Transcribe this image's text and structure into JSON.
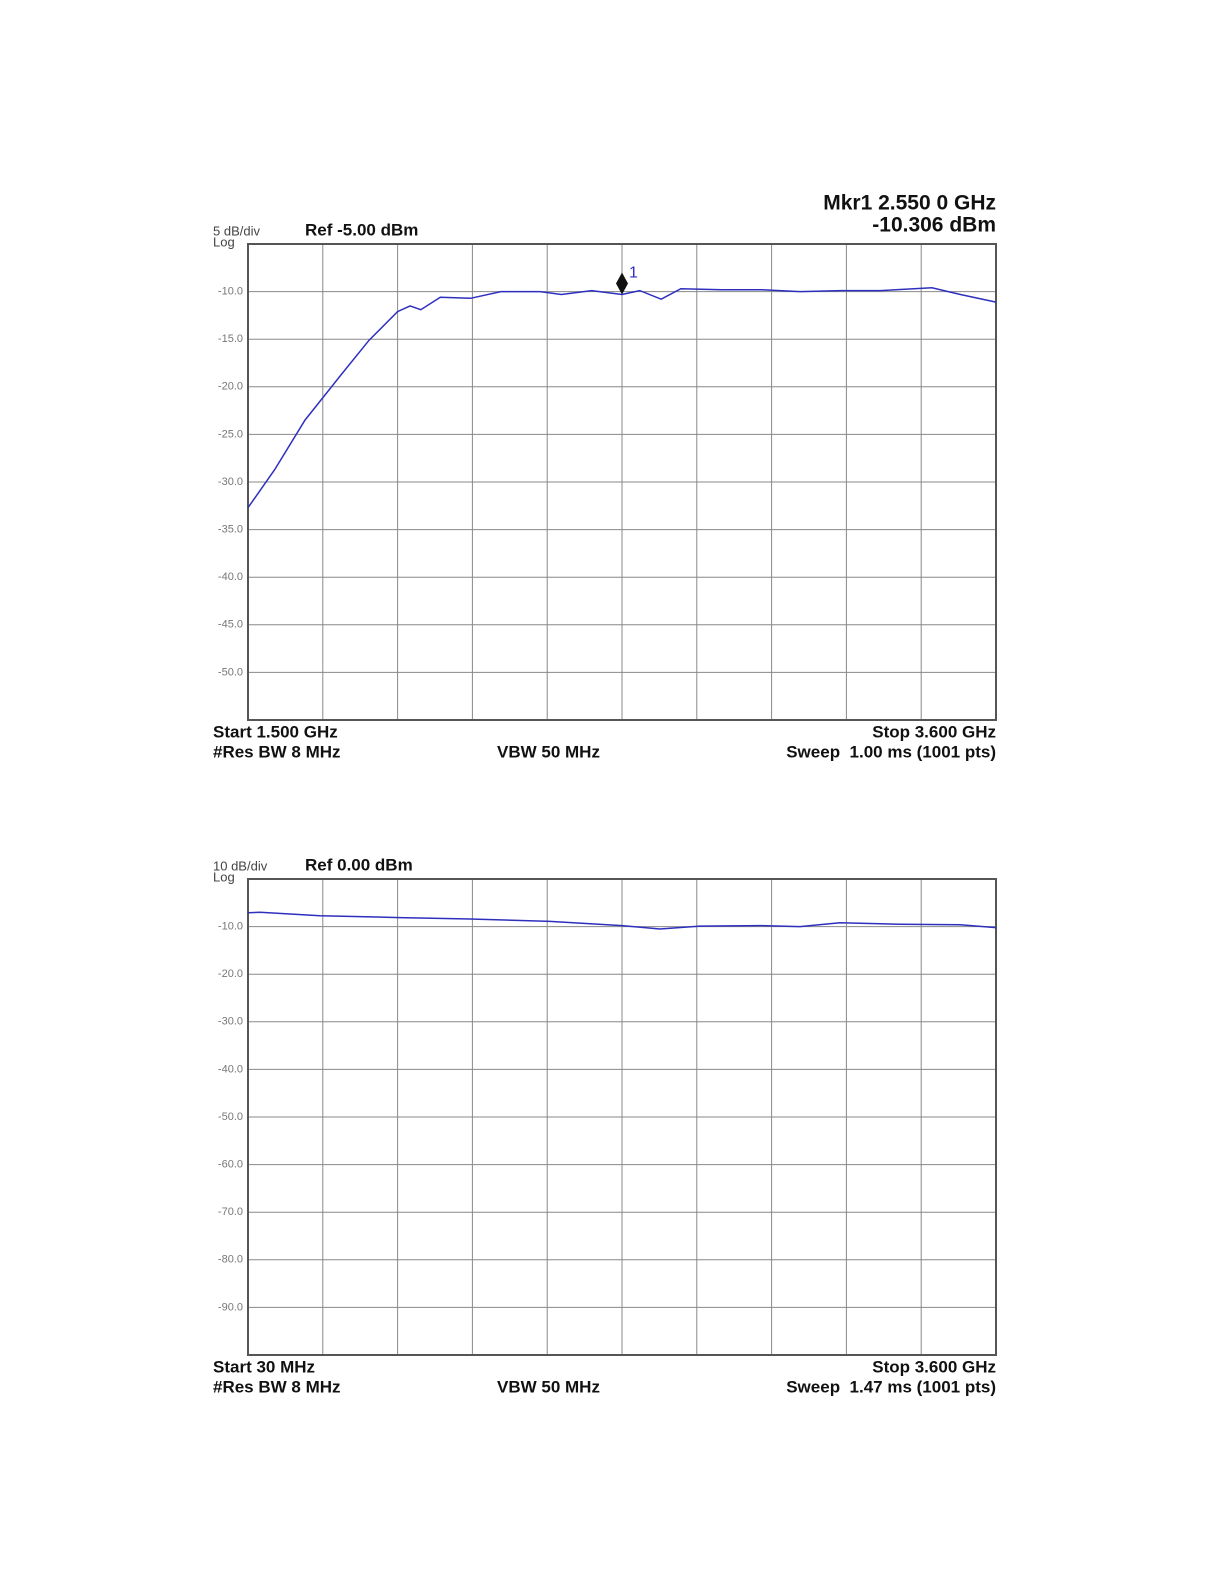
{
  "chart_data": [
    {
      "type": "line",
      "scale_label": "5 dB/div",
      "log_label": "Log",
      "ref_label": "Ref -5.00 dBm",
      "marker_readout": [
        "Mkr1 2.550 0 GHz",
        "-10.306 dBm"
      ],
      "start_label": "Start 1.500 GHz",
      "res_bw_label": "#Res BW 8 MHz",
      "vbw_label": "VBW 50 MHz",
      "stop_label": "Stop 3.600 GHz",
      "sweep_label": "Sweep  1.00 ms (1001 pts)",
      "xlim": [
        1.5,
        3.6
      ],
      "ylim": [
        -55,
        -5
      ],
      "yticks": [
        {
          "value": -10,
          "label": "-10.0"
        },
        {
          "value": -15,
          "label": "-15.0"
        },
        {
          "value": -20,
          "label": "-20.0"
        },
        {
          "value": -25,
          "label": "-25.0"
        },
        {
          "value": -30,
          "label": "-30.0"
        },
        {
          "value": -35,
          "label": "-35.0"
        },
        {
          "value": -40,
          "label": "-40.0"
        },
        {
          "value": -45,
          "label": "-45.0"
        },
        {
          "value": -50,
          "label": "-50.0"
        }
      ],
      "grid": true,
      "color": "#2f2fbf",
      "x": [
        1.5,
        1.575,
        1.66,
        1.76,
        1.84,
        1.92,
        1.955,
        1.985,
        2.04,
        2.125,
        2.21,
        2.32,
        2.38,
        2.465,
        2.55,
        2.6,
        2.66,
        2.715,
        2.83,
        2.94,
        3.05,
        3.165,
        3.275,
        3.42,
        3.5,
        3.6
      ],
      "values": [
        -32.7,
        -28.7,
        -23.5,
        -18.8,
        -15.1,
        -12.1,
        -11.5,
        -11.9,
        -10.6,
        -10.7,
        -10.0,
        -10.0,
        -10.3,
        -9.9,
        -10.3,
        -9.9,
        -10.8,
        -9.7,
        -9.8,
        -9.8,
        -10.0,
        -9.9,
        -9.9,
        -9.6,
        -10.3,
        -11.1
      ],
      "marker": {
        "label": "1",
        "x": 2.55,
        "value": -10.306
      }
    },
    {
      "type": "line",
      "scale_label": "10 dB/div",
      "log_label": "Log",
      "ref_label": "Ref 0.00 dBm",
      "start_label": "Start 30 MHz",
      "res_bw_label": "#Res BW 8 MHz",
      "vbw_label": "VBW 50 MHz",
      "stop_label": "Stop 3.600 GHz",
      "sweep_label": "Sweep  1.47 ms (1001 pts)",
      "xlim": [
        0.03,
        3.6
      ],
      "ylim": [
        -100,
        0
      ],
      "yticks": [
        {
          "value": -10,
          "label": "-10.0"
        },
        {
          "value": -20,
          "label": "-20.0"
        },
        {
          "value": -30,
          "label": "-30.0"
        },
        {
          "value": -40,
          "label": "-40.0"
        },
        {
          "value": -50,
          "label": "-50.0"
        },
        {
          "value": -60,
          "label": "-60.0"
        },
        {
          "value": -70,
          "label": "-70.0"
        },
        {
          "value": -80,
          "label": "-80.0"
        },
        {
          "value": -90,
          "label": "-90.0"
        }
      ],
      "grid": true,
      "color": "#2f2fbf",
      "x": [
        0.03,
        0.087,
        0.374,
        0.755,
        1.09,
        1.471,
        1.815,
        1.996,
        2.187,
        2.473,
        2.664,
        2.855,
        3.141,
        3.428,
        3.6
      ],
      "values": [
        -7.1,
        -7.0,
        -7.7,
        -8.1,
        -8.4,
        -8.9,
        -9.8,
        -10.5,
        -9.9,
        -9.8,
        -10.0,
        -9.2,
        -9.5,
        -9.6,
        -10.2
      ]
    }
  ]
}
